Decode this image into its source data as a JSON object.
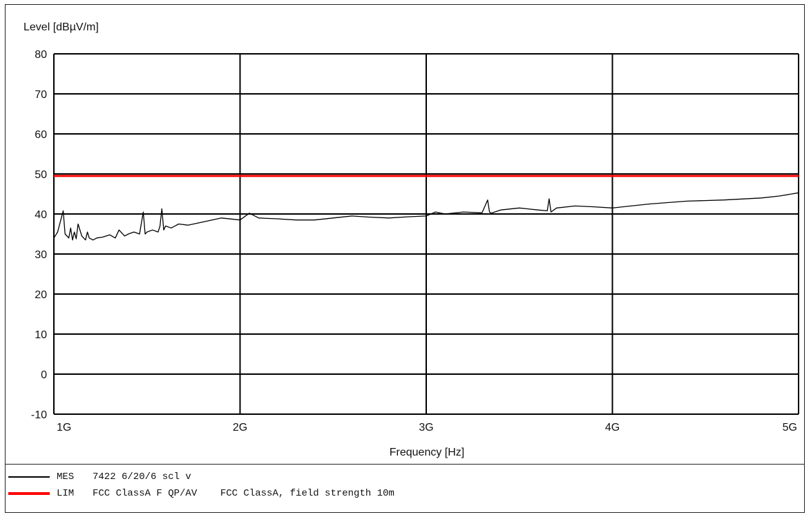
{
  "chart_data": {
    "type": "line",
    "ylabel": "Level [dBµV/m]",
    "xlabel": "Frequency [Hz]",
    "ylim": [
      -10,
      80
    ],
    "yticks": [
      80,
      70,
      60,
      50,
      40,
      30,
      20,
      10,
      0,
      -10
    ],
    "xlim": [
      1000000000,
      5000000000
    ],
    "xticks": [
      {
        "value": 1000000000,
        "label": "1G"
      },
      {
        "value": 2000000000,
        "label": "2G"
      },
      {
        "value": 3000000000,
        "label": "3G"
      },
      {
        "value": 4000000000,
        "label": "4G"
      },
      {
        "value": 5000000000,
        "label": "5G"
      }
    ],
    "grid": true,
    "series": [
      {
        "name": "MES",
        "color": "#000000",
        "x_ghz": [
          1.0,
          1.02,
          1.05,
          1.06,
          1.08,
          1.09,
          1.1,
          1.11,
          1.12,
          1.13,
          1.15,
          1.17,
          1.18,
          1.19,
          1.21,
          1.23,
          1.26,
          1.3,
          1.33,
          1.35,
          1.38,
          1.4,
          1.43,
          1.46,
          1.48,
          1.49,
          1.5,
          1.53,
          1.56,
          1.57,
          1.58,
          1.59,
          1.6,
          1.63,
          1.67,
          1.72,
          1.8,
          1.9,
          2.0,
          2.05,
          2.1,
          2.2,
          2.3,
          2.4,
          2.5,
          2.6,
          2.7,
          2.8,
          2.9,
          3.0,
          3.05,
          3.1,
          3.2,
          3.3,
          3.33,
          3.34,
          3.35,
          3.4,
          3.5,
          3.6,
          3.65,
          3.66,
          3.67,
          3.7,
          3.8,
          3.9,
          4.0,
          4.2,
          4.4,
          4.6,
          4.8,
          4.9,
          5.0
        ],
        "y": [
          34.0,
          35.5,
          40.8,
          35.0,
          34.0,
          36.5,
          33.5,
          35.5,
          33.8,
          37.5,
          34.5,
          33.5,
          35.5,
          34.0,
          33.5,
          34.0,
          34.2,
          34.8,
          34.0,
          36.0,
          34.5,
          35.0,
          35.5,
          35.0,
          40.5,
          35.0,
          35.5,
          36.0,
          35.5,
          37.0,
          41.3,
          36.0,
          37.0,
          36.5,
          37.5,
          37.2,
          38.0,
          39.0,
          38.5,
          40.2,
          39.0,
          38.8,
          38.5,
          38.5,
          39.0,
          39.5,
          39.2,
          39.0,
          39.3,
          39.5,
          40.5,
          40.0,
          40.5,
          40.3,
          43.5,
          40.5,
          40.2,
          41.0,
          41.5,
          41.0,
          40.8,
          43.8,
          40.5,
          41.5,
          42.0,
          41.8,
          41.5,
          42.5,
          43.2,
          43.5,
          44.0,
          44.5,
          45.3
        ]
      },
      {
        "name": "LIM",
        "color": "#ff0000",
        "x_ghz": [
          1.0,
          5.0
        ],
        "y": [
          49.5,
          49.5
        ]
      }
    ],
    "legend": [
      {
        "code": "MES",
        "description": "7422 6/20/6 scl v",
        "color": "#000000"
      },
      {
        "code": "LIM",
        "description": "FCC ClassA F QP/AV    FCC ClassA, field strength 10m",
        "color": "#ff0000"
      }
    ]
  }
}
